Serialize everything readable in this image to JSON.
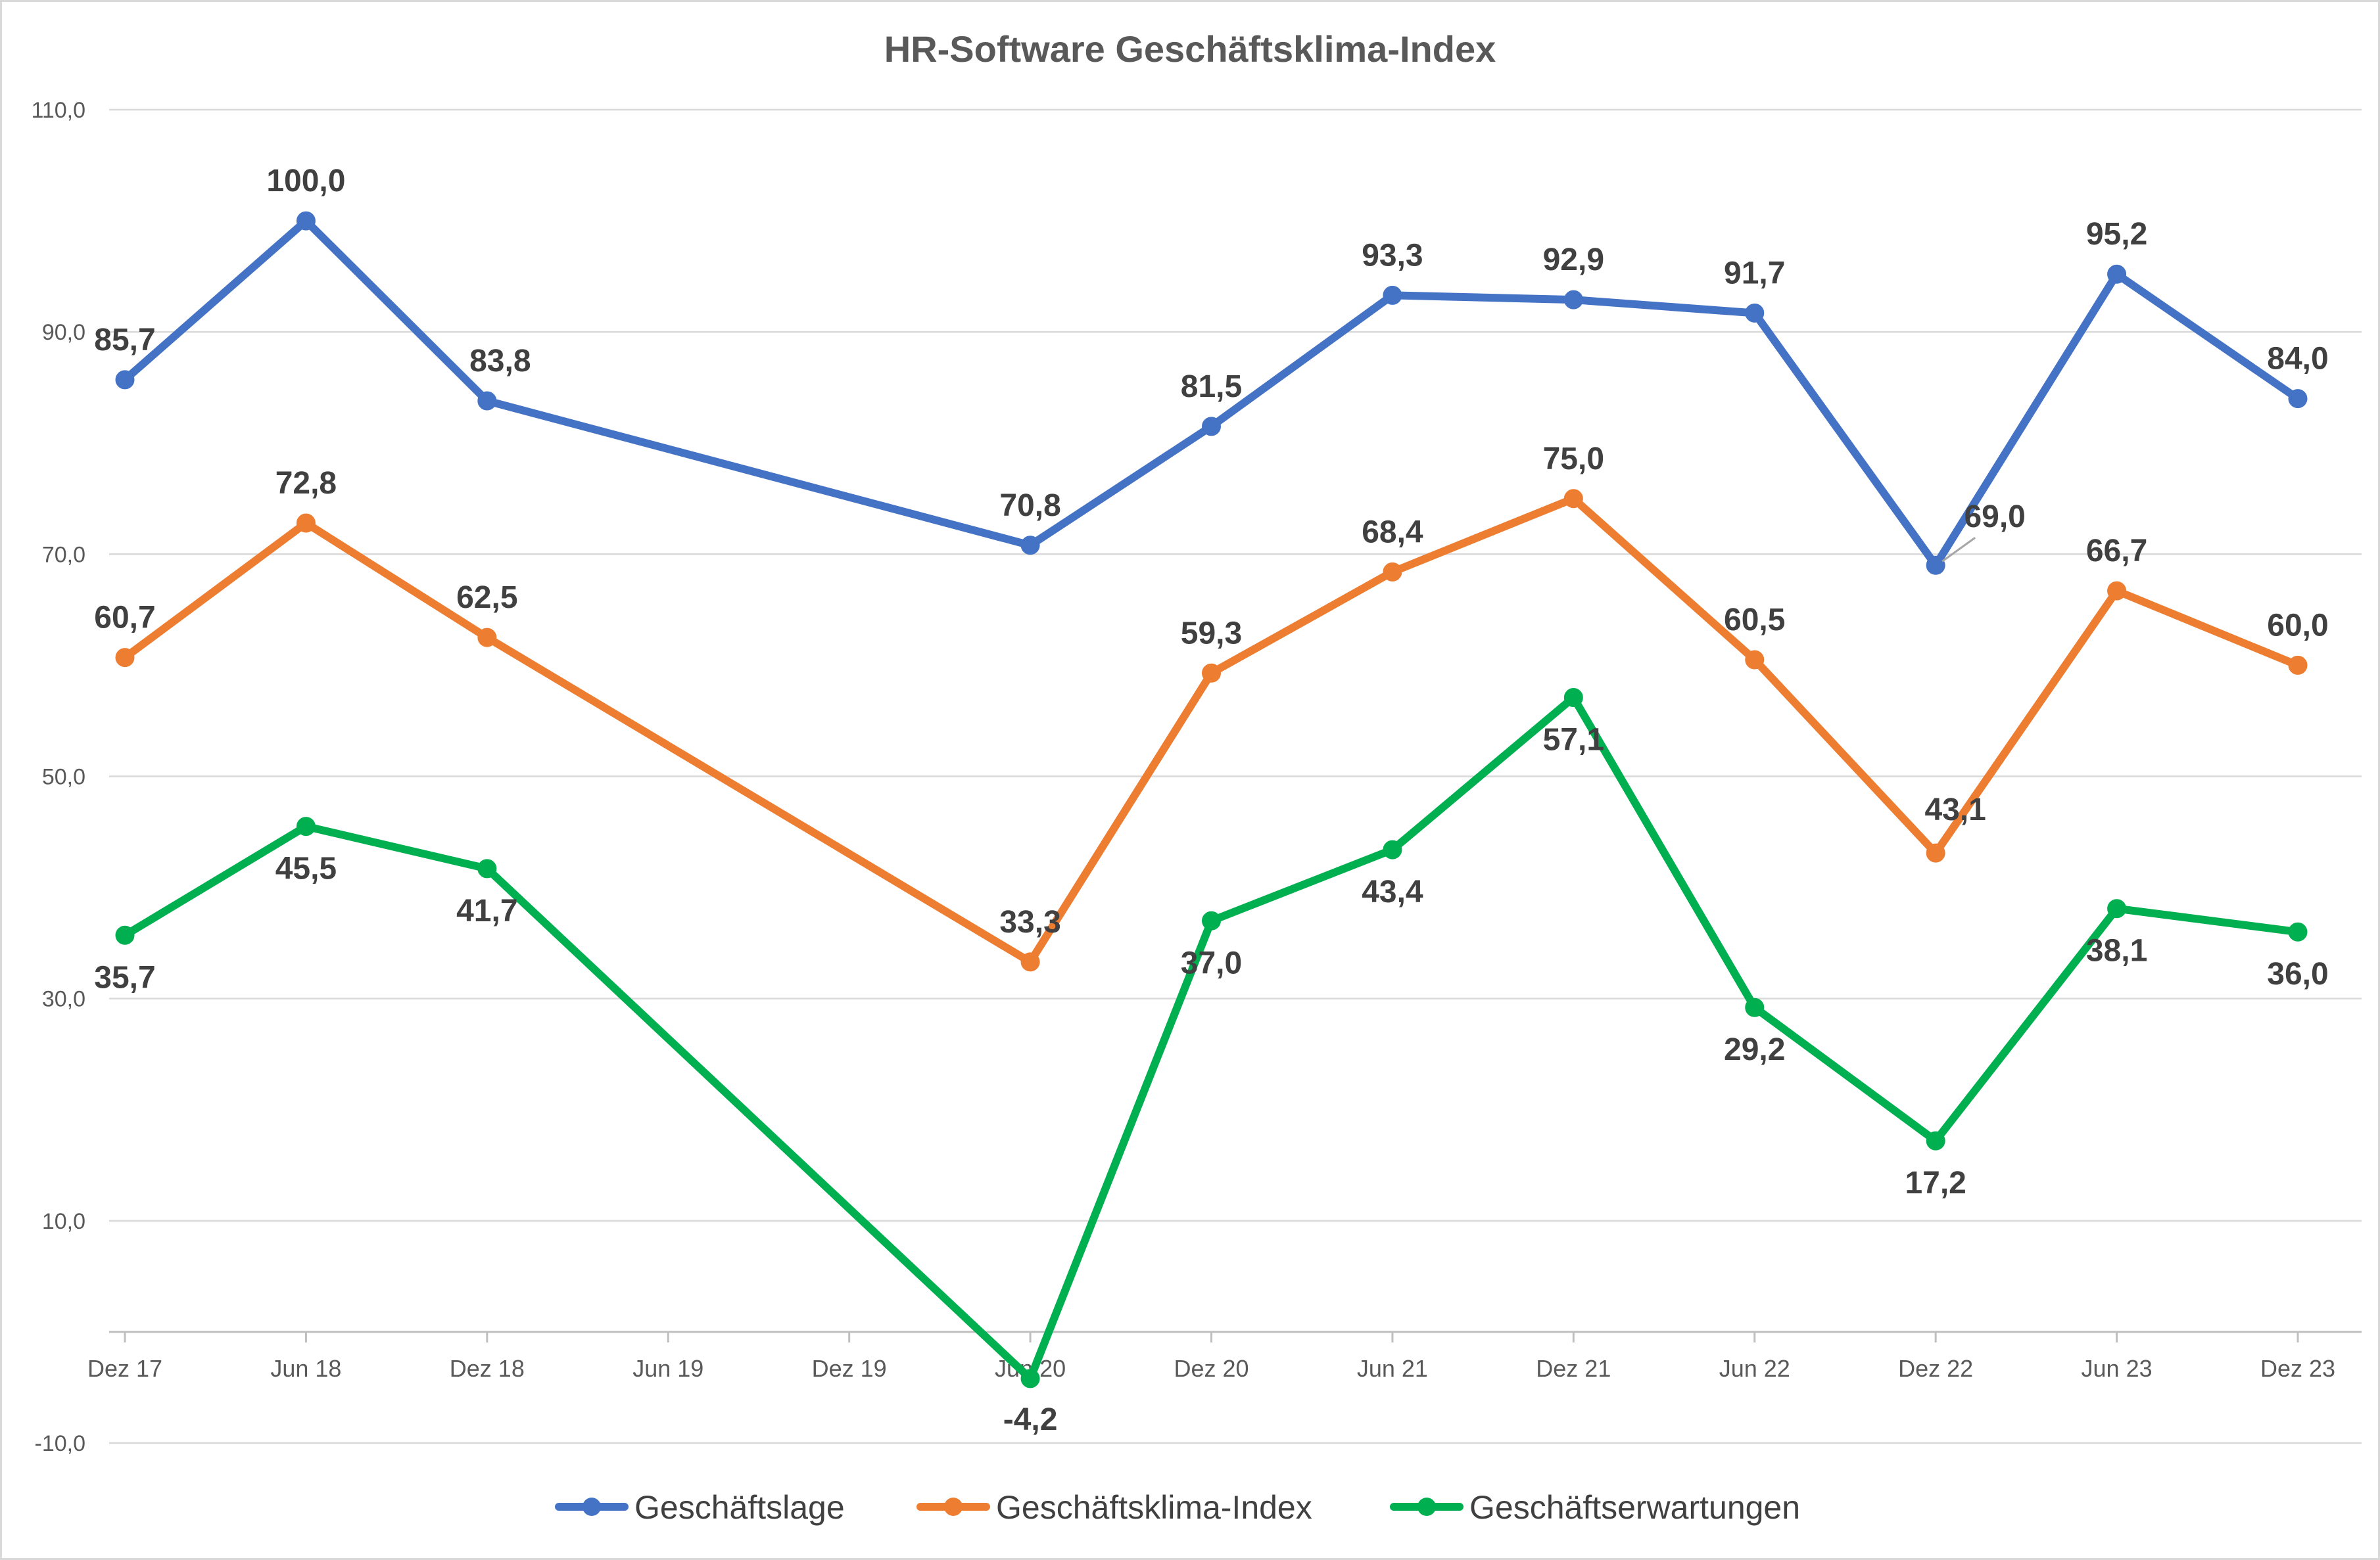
{
  "chart_data": {
    "type": "line",
    "title": "HR-Software Geschäftsklima-Index",
    "xlabel": "",
    "ylabel": "",
    "ylim": [
      -10,
      110
    ],
    "yticks": [
      "-10,0",
      "10,0",
      "30,0",
      "50,0",
      "70,0",
      "90,0",
      "110,0"
    ],
    "ytick_values": [
      -10,
      10,
      30,
      50,
      70,
      90,
      110
    ],
    "x_axis_labels": [
      "Dez 17",
      "Jun 18",
      "Dez 18",
      "Jun 19",
      "Dez 19",
      "Jun 20",
      "Dez 20",
      "Jun 21",
      "Dez 21",
      "Jun 22",
      "Dez 22",
      "Jun 23",
      "Dez 23"
    ],
    "categories": [
      "Dez 17",
      "Jun 18",
      "Dez 18",
      "Jun 20",
      "Dez 20",
      "Jun 21",
      "Dez 21",
      "Jun 22",
      "Dez 22",
      "Jun 23",
      "Dez 23"
    ],
    "grid": true,
    "legend_position": "bottom",
    "series": [
      {
        "name": "Geschäftslage",
        "color": "#4472c4",
        "values": [
          85.7,
          100.0,
          83.8,
          70.8,
          81.5,
          93.3,
          92.9,
          91.7,
          69.0,
          95.2,
          84.0
        ],
        "labels": [
          "85,7",
          "100,0",
          "83,8",
          "70,8",
          "81,5",
          "93,3",
          "92,9",
          "91,7",
          "69,0",
          "95,2",
          "84,0"
        ]
      },
      {
        "name": "Geschäftsklima-Index",
        "color": "#ed7d31",
        "values": [
          60.7,
          72.8,
          62.5,
          33.3,
          59.3,
          68.4,
          75.0,
          60.5,
          43.1,
          66.7,
          60.0
        ],
        "labels": [
          "60,7",
          "72,8",
          "62,5",
          "33,3",
          "59,3",
          "68,4",
          "75,0",
          "60,5",
          "43,1",
          "66,7",
          "60,0"
        ]
      },
      {
        "name": "Geschäftserwartungen",
        "color": "#00b050",
        "values": [
          35.7,
          45.5,
          41.7,
          -4.2,
          37.0,
          43.4,
          57.1,
          29.2,
          17.2,
          38.1,
          36.0
        ],
        "labels": [
          "35,7",
          "45,5",
          "41,7",
          "-4,2",
          "37,0",
          "43,4",
          "57,1",
          "29,2",
          "17,2",
          "38,1",
          "36,0"
        ]
      }
    ]
  }
}
